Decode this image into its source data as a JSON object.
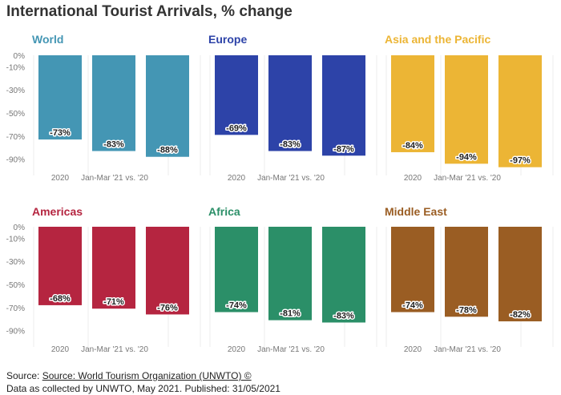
{
  "title": "International Tourist Arrivals, % change",
  "footer": {
    "source_prefix": "Source: ",
    "source_link": "Source: World Tourism Organization (UNWTO) ©",
    "note": "Data as collected by UNWTO, May 2021. Published: 31/05/2021"
  },
  "chart_data": [
    {
      "type": "bar",
      "title": "World",
      "color": "#4496b4",
      "categories": [
        "2020",
        "Jan-Mar '21 vs. '20",
        ""
      ],
      "values": [
        -73,
        -83,
        -88
      ],
      "labels": [
        "-73%",
        "-83%",
        "-88%"
      ],
      "ylim": [
        -100,
        0
      ],
      "yticks": [
        "0%",
        "-10%",
        "-30%",
        "-50%",
        "-70%",
        "-90%"
      ],
      "ytick_values": [
        0,
        -10,
        -30,
        -50,
        -70,
        -90
      ]
    },
    {
      "type": "bar",
      "title": "Europe",
      "color": "#2d43a8",
      "categories": [
        "2020",
        "Jan-Mar '21 vs. '20",
        ""
      ],
      "values": [
        -69,
        -83,
        -87
      ],
      "labels": [
        "-69%",
        "-83%",
        "-87%"
      ],
      "ylim": [
        -100,
        0
      ]
    },
    {
      "type": "bar",
      "title": "Asia and the Pacific",
      "color": "#ecb535",
      "categories": [
        "2020",
        "Jan-Mar '21 vs. '20",
        ""
      ],
      "values": [
        -84,
        -94,
        -97
      ],
      "labels": [
        "-84%",
        "-94%",
        "-97%"
      ],
      "ylim": [
        -100,
        0
      ]
    },
    {
      "type": "bar",
      "title": "Americas",
      "color": "#b52540",
      "categories": [
        "2020",
        "Jan-Mar '21 vs. '20",
        ""
      ],
      "values": [
        -68,
        -71,
        -76
      ],
      "labels": [
        "-68%",
        "-71%",
        "-76%"
      ],
      "ylim": [
        -100,
        0
      ],
      "yticks": [
        "0%",
        "-10%",
        "-30%",
        "-50%",
        "-70%",
        "-90%"
      ],
      "ytick_values": [
        0,
        -10,
        -30,
        -50,
        -70,
        -90
      ]
    },
    {
      "type": "bar",
      "title": "Africa",
      "color": "#2b8f68",
      "categories": [
        "2020",
        "Jan-Mar '21 vs. '20",
        ""
      ],
      "values": [
        -74,
        -81,
        -83
      ],
      "labels": [
        "-74%",
        "-81%",
        "-83%"
      ],
      "ylim": [
        -100,
        0
      ]
    },
    {
      "type": "bar",
      "title": "Middle East",
      "color": "#9a5d23",
      "categories": [
        "2020",
        "Jan-Mar '21 vs. '20",
        ""
      ],
      "values": [
        -74,
        -78,
        -82
      ],
      "labels": [
        "-74%",
        "-78%",
        "-82%"
      ],
      "ylim": [
        -100,
        0
      ]
    }
  ]
}
